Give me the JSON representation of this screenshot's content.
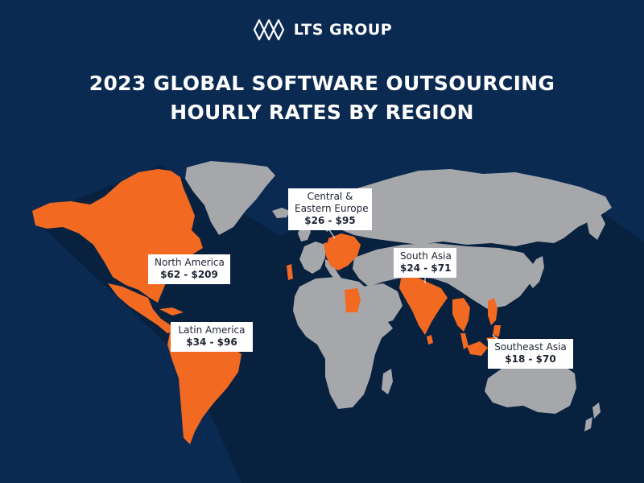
{
  "brand": {
    "name": "LTS GROUP",
    "icon": "lts-logo-icon"
  },
  "title": {
    "line1": "2023 GLOBAL SOFTWARE OUTSOURCING",
    "line2": "HOURLY RATES BY REGION"
  },
  "colors": {
    "background": "#0b2a52",
    "shadow": "#08213f",
    "land": "#a5a7ab",
    "highlight": "#f26a21",
    "label_bg": "#ffffff"
  },
  "regions": [
    {
      "name": "North America",
      "rate": "$62 - $209"
    },
    {
      "name": "Latin America",
      "rate": "$34 - $96"
    },
    {
      "name": "Central &",
      "name2": "Eastern Europe",
      "rate": "$26 - $95"
    },
    {
      "name": "South Asia",
      "rate": "$24 - $71"
    },
    {
      "name": "Southeast Asia",
      "rate": "$18 - $70"
    }
  ]
}
